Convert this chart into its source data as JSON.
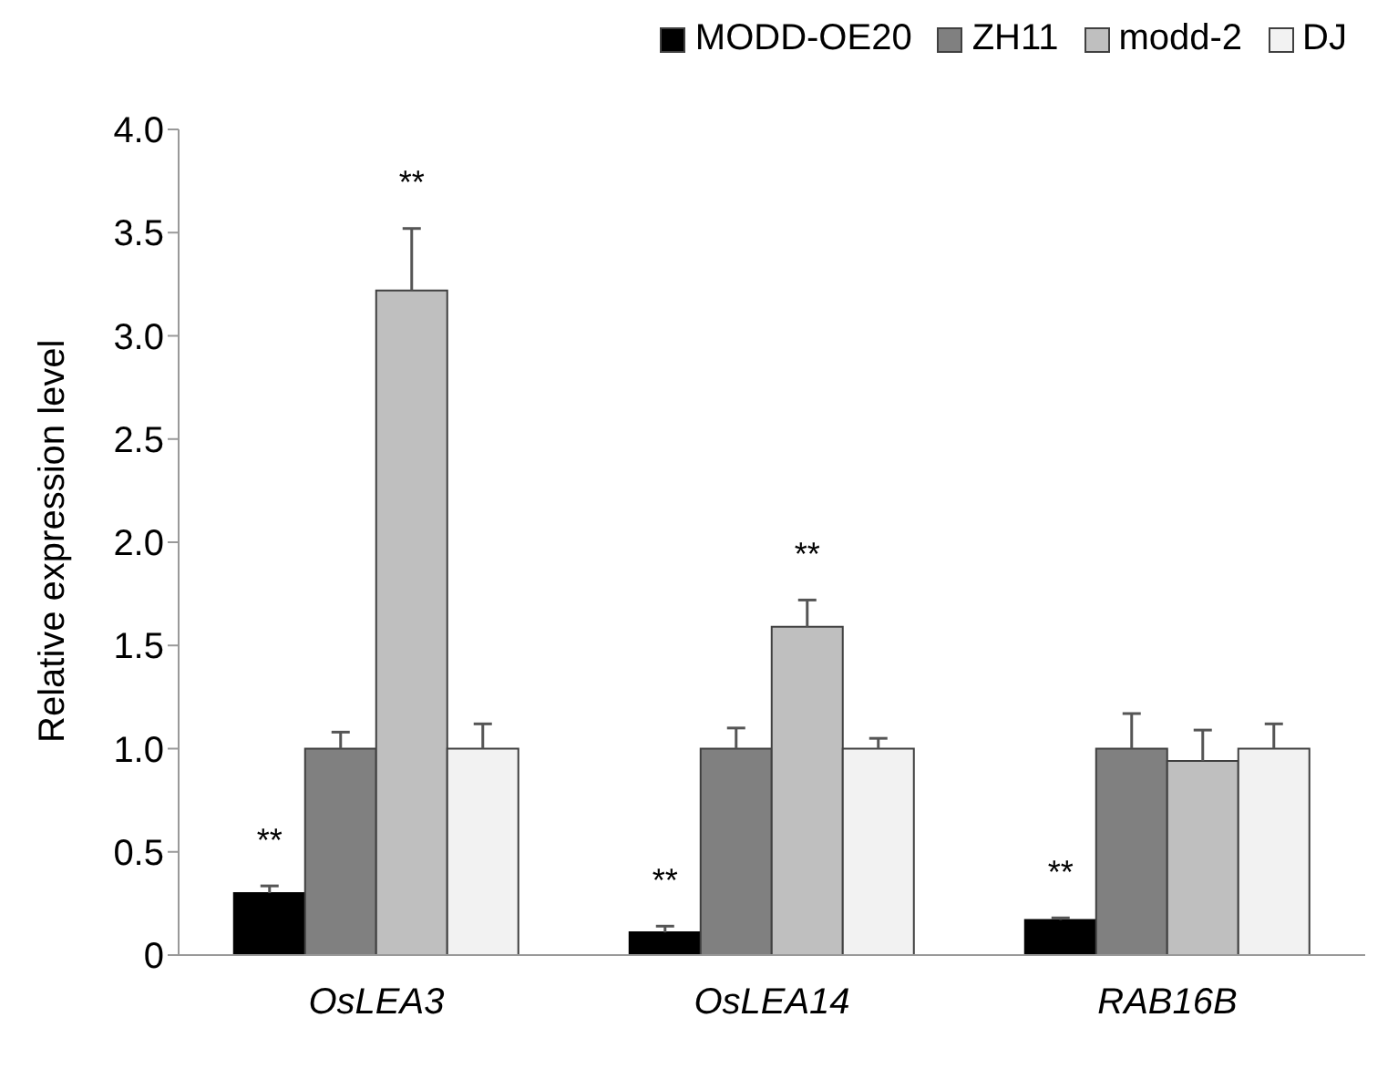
{
  "chart_data": {
    "type": "bar",
    "ylabel": "Relative expression level",
    "categories": [
      "OsLEA3",
      "OsLEA14",
      "RAB16B"
    ],
    "series": [
      {
        "name": "MODD-OE20",
        "color": "#000000",
        "values": [
          0.3,
          0.11,
          0.17
        ],
        "errors": [
          [
            0.3,
            0.335
          ],
          [
            0.11,
            0.14
          ],
          [
            0.17,
            0.18
          ]
        ]
      },
      {
        "name": "ZH11",
        "color": "#808080",
        "values": [
          1.0,
          1.0,
          1.0
        ],
        "errors": [
          [
            1.0,
            1.08
          ],
          [
            1.0,
            1.1
          ],
          [
            1.0,
            1.17
          ]
        ]
      },
      {
        "name": "modd-2",
        "color": "#bfbfbf",
        "values": [
          3.22,
          1.59,
          0.94
        ],
        "errors": [
          [
            3.22,
            3.52
          ],
          [
            1.59,
            1.72
          ],
          [
            0.94,
            1.09
          ]
        ]
      },
      {
        "name": "DJ",
        "color": "#f2f2f2",
        "values": [
          1.0,
          1.0,
          1.0
        ],
        "errors": [
          [
            1.0,
            1.12
          ],
          [
            1.0,
            1.05
          ],
          [
            1.0,
            1.12
          ]
        ]
      }
    ],
    "ylim": [
      0,
      4
    ],
    "yticks": [
      {
        "value": 0,
        "label": "0"
      },
      {
        "value": 0.5,
        "label": "0.5"
      },
      {
        "value": 1,
        "label": "1.0"
      },
      {
        "value": 1.5,
        "label": "1.5"
      },
      {
        "value": 2,
        "label": "2.0"
      },
      {
        "value": 2.5,
        "label": "2.5"
      },
      {
        "value": 3,
        "label": "3.0"
      },
      {
        "value": 3.5,
        "label": "3.5"
      },
      {
        "value": 4,
        "label": "4.0"
      }
    ],
    "annotations": [
      {
        "text": "**",
        "x": "OsLEA3",
        "y": 0.335
      },
      {
        "text": "**",
        "x": "OsLEA3",
        "y": 3.22
      },
      {
        "text": "**",
        "x": "OsLEA14",
        "y": 0.14
      },
      {
        "text": "**",
        "x": "OsLEA14",
        "y": 1.59
      },
      {
        "text": "**",
        "x": "RAB16B",
        "y": 0.18
      }
    ],
    "grid": false,
    "legend": "top right"
  }
}
